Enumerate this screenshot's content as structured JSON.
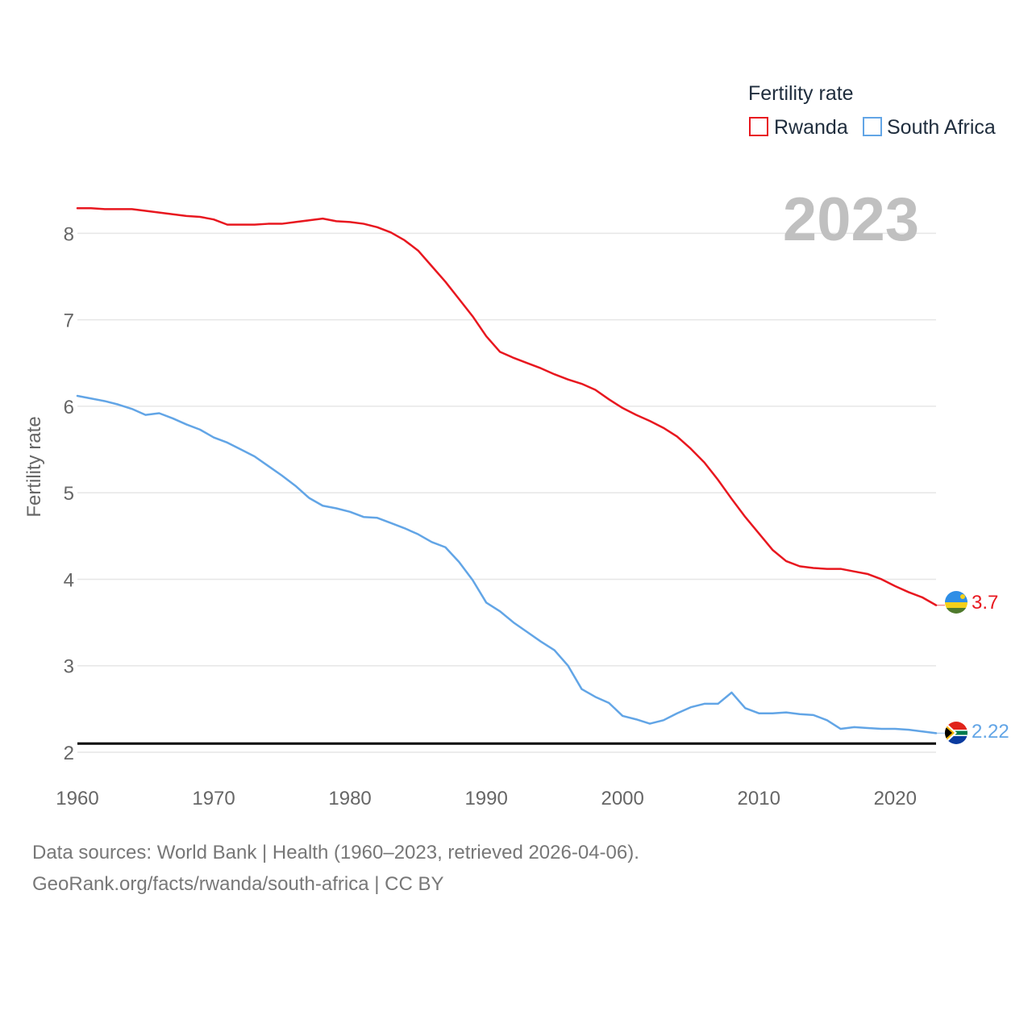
{
  "chart_data": {
    "type": "line",
    "title": "2023",
    "xlabel": "",
    "ylabel": "Fertility rate",
    "xlim": [
      1960,
      2023
    ],
    "ylim": [
      2,
      8.6
    ],
    "x_ticks": [
      1960,
      1970,
      1980,
      1990,
      2000,
      2010,
      2020
    ],
    "y_ticks": [
      2,
      3,
      4,
      5,
      6,
      7,
      8
    ],
    "grid": true,
    "legend": {
      "title": "Fertility rate",
      "position": "top-right"
    },
    "reference_line": {
      "value": 2.1,
      "color": "#000000"
    },
    "x": [
      1960,
      1961,
      1962,
      1963,
      1964,
      1965,
      1966,
      1967,
      1968,
      1969,
      1970,
      1971,
      1972,
      1973,
      1974,
      1975,
      1976,
      1977,
      1978,
      1979,
      1980,
      1981,
      1982,
      1983,
      1984,
      1985,
      1986,
      1987,
      1988,
      1989,
      1990,
      1991,
      1992,
      1993,
      1994,
      1995,
      1996,
      1997,
      1998,
      1999,
      2000,
      2001,
      2002,
      2003,
      2004,
      2005,
      2006,
      2007,
      2008,
      2009,
      2010,
      2011,
      2012,
      2013,
      2014,
      2015,
      2016,
      2017,
      2018,
      2019,
      2020,
      2021,
      2022,
      2023
    ],
    "series": [
      {
        "name": "Rwanda",
        "color": "#e8171f",
        "end_label": "3.7",
        "values": [
          8.29,
          8.29,
          8.28,
          8.28,
          8.28,
          8.26,
          8.24,
          8.22,
          8.2,
          8.19,
          8.16,
          8.1,
          8.1,
          8.1,
          8.11,
          8.11,
          8.13,
          8.15,
          8.17,
          8.14,
          8.13,
          8.11,
          8.07,
          8.01,
          7.92,
          7.8,
          7.62,
          7.44,
          7.24,
          7.04,
          6.81,
          6.63,
          6.56,
          6.5,
          6.44,
          6.37,
          6.31,
          6.26,
          6.19,
          6.08,
          5.98,
          5.9,
          5.83,
          5.75,
          5.65,
          5.51,
          5.35,
          5.15,
          4.93,
          4.72,
          4.53,
          4.34,
          4.21,
          4.15,
          4.13,
          4.12,
          4.12,
          4.09,
          4.06,
          4.0,
          3.92,
          3.85,
          3.79,
          3.7
        ]
      },
      {
        "name": "South Africa",
        "color": "#62a5e6",
        "end_label": "2.22",
        "values": [
          6.12,
          6.09,
          6.06,
          6.02,
          5.97,
          5.9,
          5.92,
          5.86,
          5.79,
          5.73,
          5.64,
          5.58,
          5.5,
          5.42,
          5.31,
          5.2,
          5.08,
          4.94,
          4.85,
          4.82,
          4.78,
          4.72,
          4.71,
          4.65,
          4.59,
          4.52,
          4.43,
          4.37,
          4.2,
          3.99,
          3.73,
          3.63,
          3.5,
          3.39,
          3.28,
          3.18,
          3.0,
          2.73,
          2.64,
          2.57,
          2.42,
          2.38,
          2.33,
          2.37,
          2.45,
          2.52,
          2.56,
          2.56,
          2.69,
          2.51,
          2.45,
          2.45,
          2.46,
          2.44,
          2.43,
          2.37,
          2.27,
          2.29,
          2.28,
          2.27,
          2.27,
          2.26,
          2.24,
          2.22
        ]
      }
    ]
  },
  "flags": {
    "rwanda_colors": [
      "#2e8ee6",
      "#f4d01a",
      "#4f7a2c"
    ],
    "south_africa_colors": [
      "#e0241b",
      "#0a3b9f",
      "#007a4d",
      "#f4b400",
      "#000000",
      "#ffffff"
    ]
  },
  "footer": {
    "line1": "Data sources: World Bank | Health (1960–2023, retrieved 2026-04-06).",
    "line2": "GeoRank.org/facts/rwanda/south-africa | CC BY"
  }
}
